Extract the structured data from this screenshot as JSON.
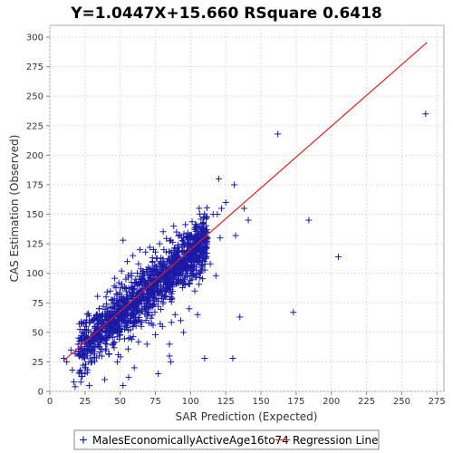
{
  "chart_data": {
    "type": "scatter",
    "title": "Y=1.0447X+15.660    RSquare 0.6418",
    "xlabel": "SAR Prediction (Expected)",
    "ylabel": "CAS Estimation (Observed)",
    "xlim": [
      0,
      280
    ],
    "ylim": [
      0,
      310
    ],
    "xticks": [
      0,
      25,
      50,
      75,
      100,
      125,
      150,
      175,
      200,
      225,
      250,
      275
    ],
    "yticks": [
      0,
      25,
      50,
      75,
      100,
      125,
      150,
      175,
      200,
      225,
      250,
      275,
      300
    ],
    "grid": true,
    "legend_position": "bottom",
    "series": [
      {
        "name": "MalesEconomicallyActiveAge16to74",
        "kind": "scatter",
        "marker": "plus",
        "color": "#1a1aa6",
        "points": [
          [
            10,
            28
          ],
          [
            12,
            25
          ],
          [
            15,
            35
          ],
          [
            16,
            18
          ],
          [
            17,
            8
          ],
          [
            18,
            4
          ],
          [
            18,
            32
          ],
          [
            20,
            40
          ],
          [
            21,
            30
          ],
          [
            22,
            45
          ],
          [
            24,
            50
          ],
          [
            25,
            20
          ],
          [
            25,
            15
          ],
          [
            26,
            55
          ],
          [
            27,
            35
          ],
          [
            28,
            5
          ],
          [
            28,
            42
          ],
          [
            30,
            60
          ],
          [
            30,
            25
          ],
          [
            31,
            48
          ],
          [
            32,
            38
          ],
          [
            33,
            65
          ],
          [
            34,
            52
          ],
          [
            35,
            70
          ],
          [
            35,
            30
          ],
          [
            36,
            44
          ],
          [
            38,
            72
          ],
          [
            38,
            58
          ],
          [
            39,
            10
          ],
          [
            40,
            80
          ],
          [
            40,
            36
          ],
          [
            41,
            62
          ],
          [
            42,
            50
          ],
          [
            43,
            85
          ],
          [
            44,
            68
          ],
          [
            45,
            40
          ],
          [
            45,
            75
          ],
          [
            46,
            57
          ],
          [
            47,
            88
          ],
          [
            48,
            65
          ],
          [
            48,
            25
          ],
          [
            49,
            92
          ],
          [
            50,
            70
          ],
          [
            50,
            48
          ],
          [
            51,
            102
          ],
          [
            52,
            78
          ],
          [
            52,
            5
          ],
          [
            52,
            128
          ],
          [
            53,
            60
          ],
          [
            54,
            95
          ],
          [
            55,
            82
          ],
          [
            55,
            110
          ],
          [
            56,
            12
          ],
          [
            56,
            45
          ],
          [
            57,
            72
          ],
          [
            58,
            100
          ],
          [
            58,
            88
          ],
          [
            59,
            115
          ],
          [
            60,
            65
          ],
          [
            60,
            20
          ],
          [
            61,
            95
          ],
          [
            62,
            78
          ],
          [
            63,
            108
          ],
          [
            63,
            42
          ],
          [
            64,
            120
          ],
          [
            65,
            85
          ],
          [
            65,
            55
          ],
          [
            66,
            100
          ],
          [
            67,
            70
          ],
          [
            68,
            118
          ],
          [
            68,
            92
          ],
          [
            69,
            40
          ],
          [
            70,
            80
          ],
          [
            70,
            105
          ],
          [
            71,
            122
          ],
          [
            72,
            62
          ],
          [
            72,
            95
          ],
          [
            73,
            110
          ],
          [
            74,
            85
          ],
          [
            75,
            48
          ],
          [
            75,
            118
          ],
          [
            76,
            100
          ],
          [
            77,
            15
          ],
          [
            77,
            72
          ],
          [
            78,
            125
          ],
          [
            79,
            90
          ],
          [
            80,
            105
          ],
          [
            80,
            55
          ],
          [
            81,
            120
          ],
          [
            82,
            80
          ],
          [
            83,
            98
          ],
          [
            84,
            112
          ],
          [
            85,
            40
          ],
          [
            85,
            30
          ],
          [
            86,
            128
          ],
          [
            86,
            25
          ],
          [
            87,
            90
          ],
          [
            88,
            115
          ],
          [
            88,
            140
          ],
          [
            89,
            65
          ],
          [
            90,
            105
          ],
          [
            90,
            135
          ],
          [
            91,
            95
          ],
          [
            92,
            122
          ],
          [
            93,
            60
          ],
          [
            94,
            110
          ],
          [
            95,
            130
          ],
          [
            95,
            50
          ],
          [
            96,
            90
          ],
          [
            97,
            118
          ],
          [
            98,
            102
          ],
          [
            99,
            70
          ],
          [
            100,
            125
          ],
          [
            101,
            95
          ],
          [
            102,
            110
          ],
          [
            103,
            85
          ],
          [
            104,
            130
          ],
          [
            105,
            65
          ],
          [
            106,
            140
          ],
          [
            107,
            100
          ],
          [
            108,
            120
          ],
          [
            109,
            138
          ],
          [
            110,
            28
          ],
          [
            111,
            148
          ],
          [
            112,
            130
          ],
          [
            114,
            108
          ],
          [
            116,
            150
          ],
          [
            118,
            98
          ],
          [
            119,
            150
          ],
          [
            120,
            180
          ],
          [
            121,
            130
          ],
          [
            122,
            155
          ],
          [
            125,
            160
          ],
          [
            130,
            28
          ],
          [
            131,
            175
          ],
          [
            132,
            132
          ],
          [
            135,
            63
          ],
          [
            138,
            155
          ],
          [
            141,
            145
          ],
          [
            162,
            218
          ],
          [
            173,
            67
          ],
          [
            184,
            145
          ],
          [
            205,
            114
          ],
          [
            267,
            235
          ]
        ]
      },
      {
        "name": "Regression Line",
        "kind": "line",
        "color": "#e02020",
        "x": [
          10,
          268
        ],
        "y": [
          26.1,
          295.6
        ]
      }
    ]
  }
}
